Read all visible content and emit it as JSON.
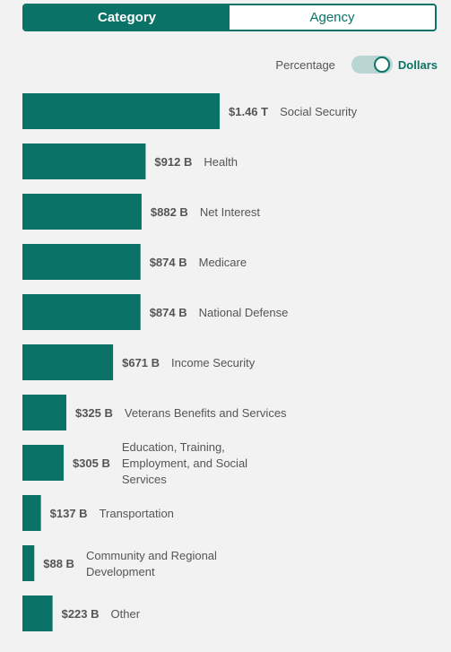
{
  "tabs": [
    {
      "label": "Category",
      "active": true
    },
    {
      "label": "Agency",
      "active": false
    }
  ],
  "toggle": {
    "left_label": "Percentage",
    "right_label": "Dollars",
    "selected": "Dollars"
  },
  "colors": {
    "accent": "#0a7266",
    "track": "#b9d6d2"
  },
  "chart_data": {
    "type": "bar",
    "orientation": "horizontal",
    "unit": "USD",
    "categories": [
      "Social Security",
      "Health",
      "Net Interest",
      "Medicare",
      "National Defense",
      "Income Security",
      "Veterans Benefits and Services",
      "Education, Training, Employment, and Social Services",
      "Transportation",
      "Community and Regional Development",
      "Other"
    ],
    "category_lines": [
      [
        "Social Security"
      ],
      [
        "Health"
      ],
      [
        "Net Interest"
      ],
      [
        "Medicare"
      ],
      [
        "National Defense"
      ],
      [
        "Income Security"
      ],
      [
        "Veterans Benefits and Services"
      ],
      [
        "Education, Training,",
        "Employment, and Social",
        "Services"
      ],
      [
        "Transportation"
      ],
      [
        "Community and Regional",
        "Development"
      ],
      [
        "Other"
      ]
    ],
    "values": [
      1460,
      912,
      882,
      874,
      874,
      671,
      325,
      305,
      137,
      88,
      223
    ],
    "value_units": "billions",
    "labels": [
      "$1.46 T",
      "$912 B",
      "$882 B",
      "$874 B",
      "$874 B",
      "$671 B",
      "$325 B",
      "$305 B",
      "$137 B",
      "$88 B",
      "$223 B"
    ],
    "title": "",
    "xlabel": "",
    "ylabel": ""
  }
}
